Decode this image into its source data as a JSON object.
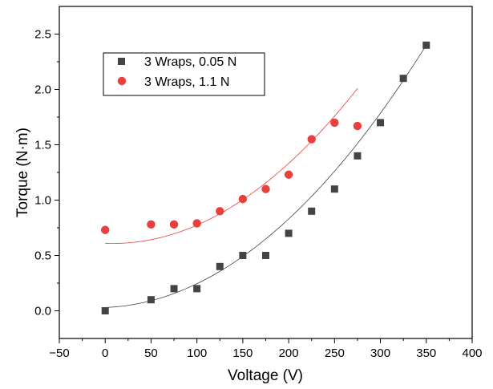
{
  "chart_data": {
    "type": "scatter",
    "xlabel": "Voltage (V)",
    "ylabel": "Torque (N·m)",
    "xlim": [
      -50,
      400
    ],
    "ylim": [
      -0.25,
      2.75
    ],
    "xticks": [
      -50,
      0,
      50,
      100,
      150,
      200,
      250,
      300,
      350,
      400
    ],
    "xtick_labels": [
      "−50",
      "0",
      "50",
      "100",
      "150",
      "200",
      "250",
      "300",
      "350",
      "400"
    ],
    "yticks": [
      0.0,
      0.5,
      1.0,
      1.5,
      2.0,
      2.5
    ],
    "ytick_labels": [
      "0.0",
      "0.5",
      "1.0",
      "1.5",
      "2.0",
      "2.5"
    ],
    "grid": false,
    "legend_position": "upper-left",
    "series": [
      {
        "name": "3 Wraps, 0.05 N",
        "marker": "square",
        "color": "#444444",
        "x": [
          0,
          50,
          75,
          100,
          125,
          150,
          175,
          200,
          225,
          250,
          275,
          300,
          325,
          350
        ],
        "y": [
          0.0,
          0.1,
          0.2,
          0.2,
          0.4,
          0.5,
          0.5,
          0.7,
          0.9,
          1.1,
          1.4,
          1.7,
          2.1,
          2.4
        ],
        "fit": {
          "color": "#444444",
          "x_range": [
            0,
            350
          ],
          "quadratic_coeffs": [
            0.03,
            0.0003,
            1.85e-05
          ]
        }
      },
      {
        "name": "3 Wraps, 1.1 N",
        "marker": "circle",
        "color": "#e8403c",
        "x": [
          0,
          50,
          75,
          100,
          125,
          150,
          175,
          200,
          225,
          250,
          275
        ],
        "y": [
          0.73,
          0.78,
          0.78,
          0.79,
          0.9,
          1.01,
          1.1,
          1.23,
          1.55,
          1.7,
          1.67
        ],
        "fit": {
          "color": "#e8403c",
          "x_range": [
            0,
            275
          ],
          "quadratic_coeffs": [
            0.61,
            -0.00033,
            1.97e-05
          ]
        }
      }
    ]
  }
}
